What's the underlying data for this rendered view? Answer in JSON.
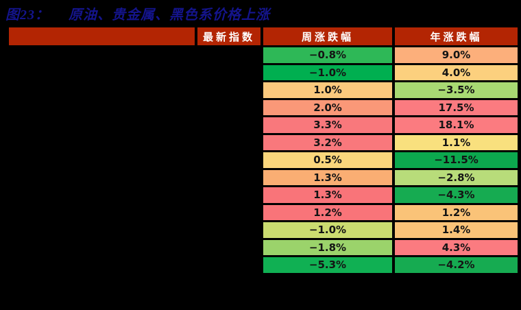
{
  "figure": {
    "title_prefix": "图23：",
    "title_text": "原油、贵金属、黑色系价格上涨",
    "title_color": "#14148C",
    "header_bg": "#B32503",
    "grid_color": "#000000"
  },
  "chart_data": {
    "type": "table",
    "title": "图23： 原油、贵金属、黑色系价格上涨",
    "columns": [
      "",
      "最新指数",
      "周涨跌幅",
      "年涨跌幅"
    ],
    "note": "row label and 最新指数 columns are blacked out in the source image; only 周涨跌幅 and 年涨跌幅 values are visible",
    "rows": [
      {
        "week": "−0.8%",
        "week_bg": "#2EB857",
        "year": "9.0%",
        "year_bg": "#FCAF7B"
      },
      {
        "week": "−1.0%",
        "week_bg": "#00AF50",
        "year": "4.0%",
        "year_bg": "#FCD07E"
      },
      {
        "week": "1.0%",
        "week_bg": "#FBC97D",
        "year": "−3.5%",
        "year_bg": "#A8D973"
      },
      {
        "week": "2.0%",
        "week_bg": "#FA9878",
        "year": "17.5%",
        "year_bg": "#FB7B80"
      },
      {
        "week": "3.3%",
        "week_bg": "#F9787C",
        "year": "18.1%",
        "year_bg": "#FB7B80"
      },
      {
        "week": "3.2%",
        "week_bg": "#F9787C",
        "year": "1.1%",
        "year_bg": "#F9E07E"
      },
      {
        "week": "0.5%",
        "week_bg": "#FAD67C",
        "year": "−11.5%",
        "year_bg": "#0CA84E"
      },
      {
        "week": "1.3%",
        "week_bg": "#FAAE73",
        "year": "−2.8%",
        "year_bg": "#B8DC7A"
      },
      {
        "week": "1.3%",
        "week_bg": "#F97479",
        "year": "−4.3%",
        "year_bg": "#16AB51"
      },
      {
        "week": "1.2%",
        "week_bg": "#F97479",
        "year": "1.2%",
        "year_bg": "#FAC378"
      },
      {
        "week": "−1.0%",
        "week_bg": "#CBDC70",
        "year": "1.4%",
        "year_bg": "#FAC378"
      },
      {
        "week": "−1.8%",
        "week_bg": "#9BD36B",
        "year": "4.3%",
        "year_bg": "#FB7B80"
      },
      {
        "week": "−5.3%",
        "week_bg": "#10B053",
        "year": "−4.2%",
        "year_bg": "#16AB51"
      }
    ]
  }
}
